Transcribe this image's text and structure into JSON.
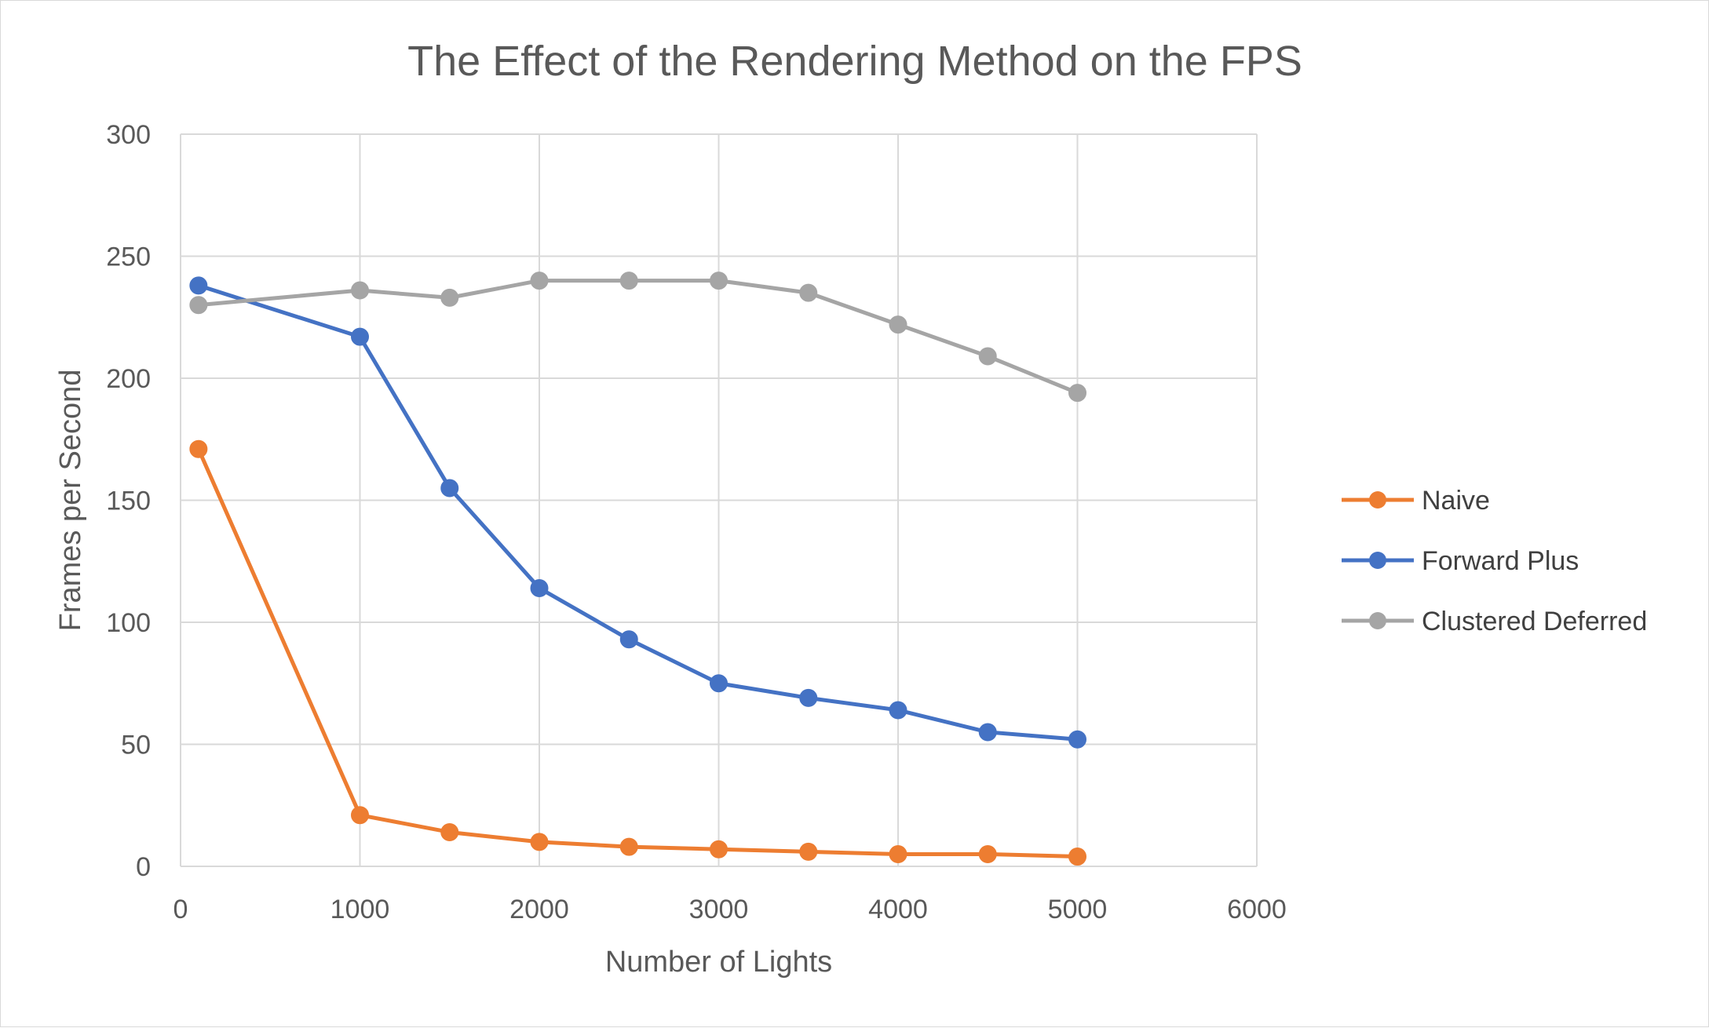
{
  "chart_data": {
    "type": "line",
    "title": "The Effect of the Rendering Method on the FPS",
    "xlabel": "Number of Lights",
    "ylabel": "Frames per Second",
    "xlim": [
      0,
      6000
    ],
    "ylim": [
      0,
      300
    ],
    "x_ticks": [
      0,
      1000,
      2000,
      3000,
      4000,
      5000,
      6000
    ],
    "y_ticks": [
      0,
      50,
      100,
      150,
      200,
      250,
      300
    ],
    "grid": true,
    "legend_position": "right",
    "x": [
      100,
      1000,
      1500,
      2000,
      2500,
      3000,
      3500,
      4000,
      4500,
      5000
    ],
    "series": [
      {
        "name": "Naive",
        "color": "#ED7D31",
        "values": [
          171,
          21,
          14,
          10,
          8,
          7,
          6,
          5,
          5,
          4
        ]
      },
      {
        "name": "Forward Plus",
        "color": "#4472C4",
        "values": [
          238,
          217,
          155,
          114,
          93,
          75,
          69,
          64,
          55,
          52
        ]
      },
      {
        "name": "Clustered Deferred",
        "color": "#A5A5A5",
        "values": [
          230,
          236,
          233,
          240,
          240,
          240,
          235,
          222,
          209,
          194
        ]
      }
    ]
  }
}
